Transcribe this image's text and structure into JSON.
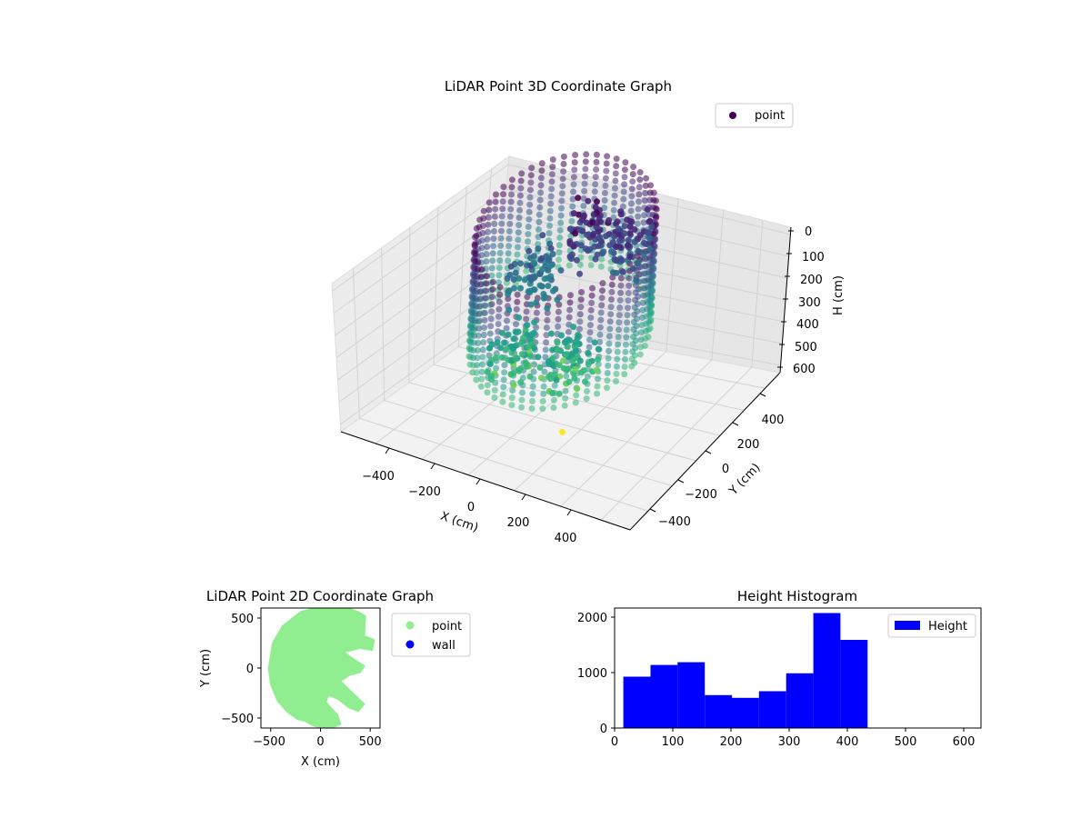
{
  "chart_data": [
    {
      "type": "scatter",
      "projection": "3d",
      "title": "LiDAR Point 3D Coordinate Graph",
      "xlabel": "X (cm)",
      "ylabel": "Y (cm)",
      "zlabel": "H (cm)",
      "xticks": [
        "−400",
        "−200",
        "0",
        "200",
        "400"
      ],
      "yticks": [
        "−400",
        "−200",
        "0",
        "200",
        "400"
      ],
      "zticks": [
        "0",
        "100",
        "200",
        "300",
        "400",
        "500",
        "600"
      ],
      "xlim": [
        -550,
        550
      ],
      "ylim": [
        -550,
        550
      ],
      "zlim": [
        650,
        0
      ],
      "z_axis_inverted": true,
      "colormap": "viridis",
      "grid": true,
      "legend": {
        "position": "top-right",
        "entries": [
          {
            "label": "point",
            "color": "#440154"
          }
        ]
      },
      "series": [
        {
          "name": "point",
          "description_points": "approximate point cloud: a circular wall ring of radius about 400 cm spanning heights about 0-450 cm, plus inner clusters",
          "ring": {
            "radius": 410,
            "h_min": 0,
            "h_max": 450
          },
          "clusters": [
            {
              "x": -150,
              "y": 0,
              "h": 230
            },
            {
              "x": 60,
              "y": 120,
              "h": 80
            },
            {
              "x": 220,
              "y": 180,
              "h": 120
            },
            {
              "x": -100,
              "y": -200,
              "h": 400
            },
            {
              "x": 150,
              "y": -150,
              "h": 400
            }
          ],
          "outlier": {
            "x": 200,
            "y": -250,
            "h": 620
          }
        }
      ]
    },
    {
      "type": "scatter",
      "title": "LiDAR Point 2D Coordinate Graph",
      "xlabel": "X (cm)",
      "ylabel": "Y (cm)",
      "xticks": [
        "−500",
        "0",
        "500"
      ],
      "yticks": [
        "−500",
        "0",
        "500"
      ],
      "xlim": [
        -600,
        600
      ],
      "ylim": [
        -600,
        600
      ],
      "legend": {
        "position": "outside-right",
        "entries": [
          {
            "label": "point",
            "color": "#90ee90"
          },
          {
            "label": "wall",
            "color": "#0000ff"
          }
        ]
      },
      "series": [
        {
          "name": "point",
          "color": "#90ee90",
          "outline": [
            [
              -520,
              0
            ],
            [
              -500,
              -160
            ],
            [
              -430,
              -330
            ],
            [
              -330,
              -440
            ],
            [
              -230,
              -510
            ],
            [
              -150,
              -530
            ],
            [
              -80,
              -570
            ],
            [
              0,
              -600
            ],
            [
              110,
              -600
            ],
            [
              200,
              -560
            ],
            [
              170,
              -470
            ],
            [
              50,
              -340
            ],
            [
              80,
              -270
            ],
            [
              180,
              -310
            ],
            [
              280,
              -390
            ],
            [
              380,
              -430
            ],
            [
              440,
              -360
            ],
            [
              300,
              -230
            ],
            [
              200,
              -130
            ],
            [
              290,
              -70
            ],
            [
              400,
              -40
            ],
            [
              440,
              20
            ],
            [
              330,
              90
            ],
            [
              230,
              160
            ],
            [
              400,
              200
            ],
            [
              520,
              180
            ],
            [
              540,
              280
            ],
            [
              440,
              320
            ],
            [
              450,
              520
            ],
            [
              380,
              560
            ],
            [
              270,
              600
            ],
            [
              -50,
              600
            ],
            [
              -200,
              560
            ],
            [
              -380,
              420
            ],
            [
              -480,
              250
            ]
          ]
        },
        {
          "name": "wall",
          "color": "#0000ff",
          "points": []
        }
      ]
    },
    {
      "type": "bar",
      "title": "Height Histogram",
      "xlabel": "",
      "ylabel": "",
      "xlim": [
        0,
        630
      ],
      "ylim": [
        0,
        2150
      ],
      "xticks": [
        "0",
        "100",
        "200",
        "300",
        "400",
        "500",
        "600"
      ],
      "yticks": [
        "0",
        "1000",
        "2000"
      ],
      "legend": {
        "position": "top-right",
        "entries": [
          {
            "label": "Height",
            "color": "#0000ff"
          }
        ]
      },
      "series": [
        {
          "name": "Height",
          "color": "#0000ff",
          "bin_edges": [
            15,
            61.7,
            108.3,
            155,
            201.7,
            248.3,
            295,
            341.7,
            388.3,
            435
          ],
          "values": [
            920,
            1130,
            1180,
            590,
            540,
            660,
            980,
            2060,
            1580
          ]
        }
      ]
    }
  ]
}
